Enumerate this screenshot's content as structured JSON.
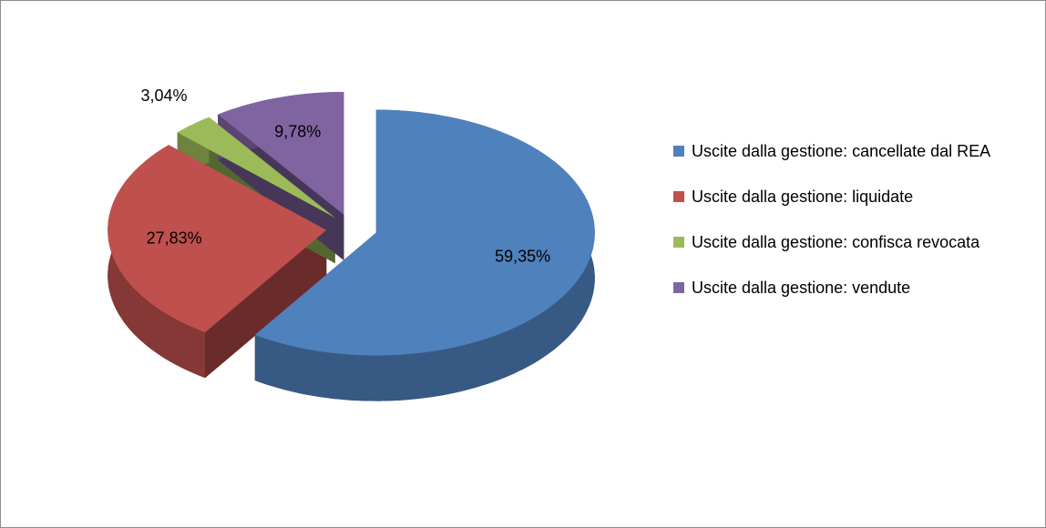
{
  "chart_data": {
    "type": "pie",
    "categories": [
      "Uscite dalla gestione: cancellate dal REA",
      "Uscite dalla gestione: liquidate",
      "Uscite dalla gestione: confisca revocata",
      "Uscite dalla gestione: vendute"
    ],
    "values": [
      59.35,
      27.83,
      3.04,
      9.78
    ],
    "value_labels": [
      "59,35%",
      "27,83%",
      "3,04%",
      "9,78%"
    ],
    "colors": [
      "#4f81bd",
      "#c0504d",
      "#9bbb59",
      "#8064a2"
    ],
    "legend": "right"
  }
}
